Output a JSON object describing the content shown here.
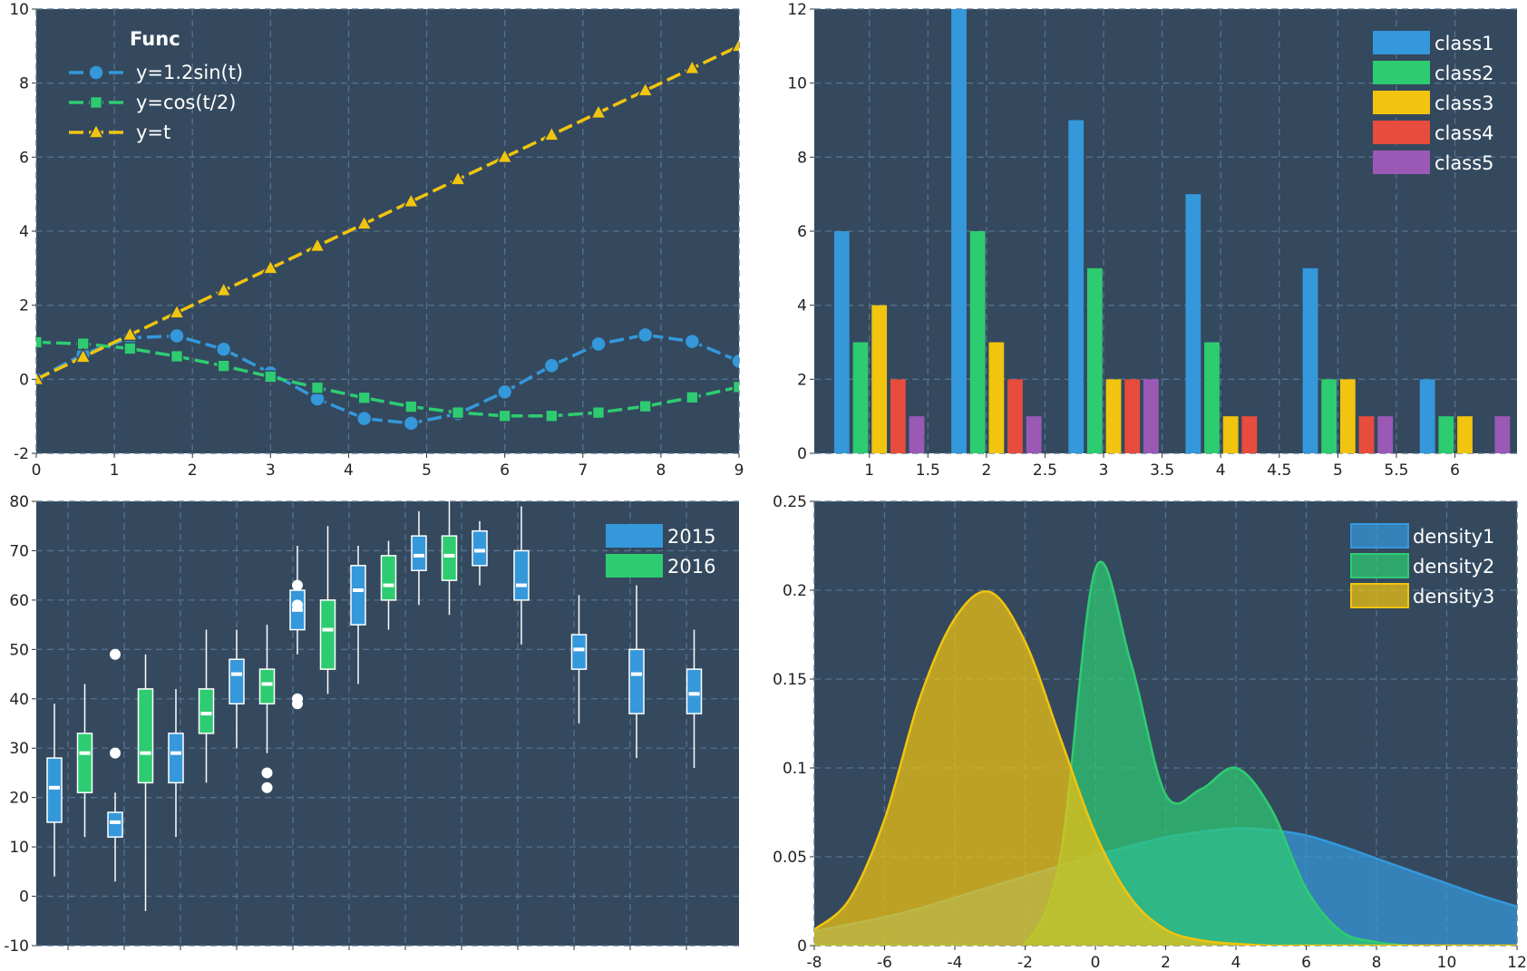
{
  "colors": {
    "background": "#34495e",
    "grid": "#56708c",
    "blue": "#3498db",
    "green": "#2ecc71",
    "yellow": "#f1c40f",
    "red": "#e74c3c",
    "purple": "#9b59b6",
    "white": "#ffffff"
  },
  "chart_data": [
    {
      "type": "line",
      "legend_title": "Func",
      "xlim": [
        0,
        9
      ],
      "ylim": [
        -2,
        10
      ],
      "x_ticks": [
        0,
        1,
        2,
        3,
        4,
        5,
        6,
        7,
        8,
        9
      ],
      "y_ticks": [
        -2,
        0,
        2,
        4,
        6,
        8,
        10
      ],
      "grid": true,
      "legend_position": "top-left",
      "x": [
        0,
        0.6,
        1.2,
        1.8,
        2.4,
        3.0,
        3.6,
        4.2,
        4.8,
        5.4,
        6.0,
        6.6,
        7.2,
        7.8,
        8.4,
        9.0
      ],
      "series": [
        {
          "name": "y=1.2sin(t)",
          "marker": "circle",
          "color": "#3498db",
          "values": [
            0.0,
            0.68,
            1.12,
            1.17,
            0.81,
            0.17,
            -0.53,
            -1.06,
            -1.19,
            -0.93,
            -0.34,
            0.37,
            0.95,
            1.2,
            1.02,
            0.49
          ]
        },
        {
          "name": "y=cos(t/2)",
          "marker": "square",
          "color": "#2ecc71",
          "values": [
            1.0,
            0.96,
            0.83,
            0.62,
            0.36,
            0.07,
            -0.23,
            -0.5,
            -0.74,
            -0.9,
            -0.99,
            -0.99,
            -0.9,
            -0.73,
            -0.49,
            -0.21
          ]
        },
        {
          "name": "y=t",
          "marker": "triangle",
          "color": "#f1c40f",
          "values": [
            0.0,
            0.6,
            1.2,
            1.8,
            2.4,
            3.0,
            3.6,
            4.2,
            4.8,
            5.4,
            6.0,
            6.6,
            7.2,
            7.8,
            8.4,
            9.0
          ]
        }
      ]
    },
    {
      "type": "bar",
      "xlim": [
        0.53,
        6.53
      ],
      "ylim": [
        0,
        12
      ],
      "x_ticks": [
        "1",
        "1.5",
        "2",
        "2.5",
        "3",
        "3.5",
        "4",
        "4.5",
        "5",
        "5.5",
        "6"
      ],
      "y_ticks": [
        0,
        2,
        4,
        6,
        8,
        10,
        12
      ],
      "grid": true,
      "legend_position": "top-right",
      "categories": [
        1,
        2,
        3,
        4,
        5,
        6
      ],
      "series": [
        {
          "name": "class1",
          "color": "#3498db",
          "values": [
            6,
            12,
            9,
            7,
            5,
            2
          ]
        },
        {
          "name": "class2",
          "color": "#2ecc71",
          "values": [
            3,
            6,
            5,
            3,
            2,
            1
          ]
        },
        {
          "name": "class3",
          "color": "#f1c40f",
          "values": [
            4,
            3,
            2,
            1,
            2,
            1
          ]
        },
        {
          "name": "class4",
          "color": "#e74c3c",
          "values": [
            2,
            2,
            2,
            1,
            1,
            0
          ]
        },
        {
          "name": "class5",
          "color": "#9b59b6",
          "values": [
            1,
            1,
            2,
            0,
            1,
            1
          ]
        }
      ]
    },
    {
      "type": "box",
      "ylim": [
        -10,
        80
      ],
      "y_ticks": [
        -10,
        0,
        10,
        20,
        30,
        40,
        50,
        60,
        70,
        80
      ],
      "grid": true,
      "legend_position": "top-right",
      "series": [
        {
          "name": "2015",
          "color": "#3498db"
        },
        {
          "name": "2016",
          "color": "#2ecc71"
        }
      ],
      "boxes": [
        {
          "series": "2015",
          "min": 4,
          "q1": 15,
          "median": 22,
          "q3": 28,
          "max": 39,
          "outliers": []
        },
        {
          "series": "2016",
          "min": 12,
          "q1": 21,
          "median": 29,
          "q3": 33,
          "max": 43,
          "outliers": []
        },
        {
          "series": "2015",
          "min": 3,
          "q1": 12,
          "median": 15,
          "q3": 17,
          "max": 21,
          "outliers": [
            49,
            29
          ]
        },
        {
          "series": "2016",
          "min": -3,
          "q1": 23,
          "median": 29,
          "q3": 42,
          "max": 49,
          "outliers": []
        },
        {
          "series": "2015",
          "min": 12,
          "q1": 23,
          "median": 29,
          "q3": 33,
          "max": 42,
          "outliers": []
        },
        {
          "series": "2016",
          "min": 23,
          "q1": 33,
          "median": 37,
          "q3": 42,
          "max": 54,
          "outliers": []
        },
        {
          "series": "2015",
          "min": 30,
          "q1": 39,
          "median": 45,
          "q3": 48,
          "max": 54,
          "outliers": []
        },
        {
          "series": "2016",
          "min": 29,
          "q1": 39,
          "median": 43,
          "q3": 46,
          "max": 55,
          "outliers": [
            25,
            22
          ]
        },
        {
          "series": "2015",
          "min": 49,
          "q1": 54,
          "median": 58,
          "q3": 62,
          "max": 71,
          "outliers": [
            63,
            59,
            40,
            39
          ]
        },
        {
          "series": "2016",
          "min": 41,
          "q1": 46,
          "median": 54,
          "q3": 60,
          "max": 75,
          "outliers": []
        },
        {
          "series": "2015",
          "min": 43,
          "q1": 55,
          "median": 62,
          "q3": 67,
          "max": 71,
          "outliers": []
        },
        {
          "series": "2016",
          "min": 54,
          "q1": 60,
          "median": 63,
          "q3": 69,
          "max": 72,
          "outliers": []
        },
        {
          "series": "2015",
          "min": 59,
          "q1": 66,
          "median": 69,
          "q3": 73,
          "max": 78,
          "outliers": []
        },
        {
          "series": "2016",
          "min": 57,
          "q1": 64,
          "median": 69,
          "q3": 73,
          "max": 80,
          "outliers": []
        },
        {
          "series": "2015",
          "min": 63,
          "q1": 67,
          "median": 70,
          "q3": 74,
          "max": 76,
          "outliers": []
        },
        {
          "series": "2015",
          "min": 51,
          "q1": 60,
          "median": 63,
          "q3": 70,
          "max": 79,
          "outliers": []
        },
        {
          "series": "2015",
          "min": 35,
          "q1": 46,
          "median": 50,
          "q3": 53,
          "max": 61,
          "outliers": []
        },
        {
          "series": "2015",
          "min": 28,
          "q1": 37,
          "median": 45,
          "q3": 50,
          "max": 63,
          "outliers": []
        },
        {
          "series": "2015",
          "min": 26,
          "q1": 37,
          "median": 41,
          "q3": 46,
          "max": 54,
          "outliers": []
        }
      ]
    },
    {
      "type": "area",
      "xlim": [
        -8,
        12
      ],
      "ylim": [
        0,
        0.25
      ],
      "x_ticks": [
        "-8",
        "-6",
        "-4",
        "-2",
        "0",
        "2",
        "4",
        "6",
        "8",
        "10",
        "12"
      ],
      "y_ticks": [
        "0",
        "0.05",
        "0.1",
        "0.15",
        "0.2",
        "0.25"
      ],
      "grid": true,
      "legend_position": "top-right",
      "x": [
        -8,
        -7,
        -6,
        -5,
        -4,
        -3,
        -2,
        -1,
        0,
        1,
        2,
        3,
        4,
        5,
        6,
        7,
        8,
        9,
        10,
        11,
        12
      ],
      "series": [
        {
          "name": "density1",
          "color": "#3498db",
          "values": [
            0.008,
            0.012,
            0.016,
            0.021,
            0.027,
            0.033,
            0.039,
            0.045,
            0.051,
            0.056,
            0.061,
            0.064,
            0.066,
            0.065,
            0.062,
            0.056,
            0.049,
            0.042,
            0.035,
            0.028,
            0.022
          ]
        },
        {
          "name": "density2",
          "color": "#2ecc71",
          "values": [
            0.0,
            0.0,
            0.0,
            0.0,
            0.0,
            0.0,
            0.001,
            0.05,
            0.212,
            0.16,
            0.085,
            0.088,
            0.1,
            0.077,
            0.032,
            0.008,
            0.002,
            0.0,
            0.0,
            0.0,
            0.0
          ]
        },
        {
          "name": "density3",
          "color": "#f1c40f",
          "values": [
            0.009,
            0.026,
            0.071,
            0.139,
            0.184,
            0.199,
            0.171,
            0.117,
            0.063,
            0.027,
            0.009,
            0.003,
            0.001,
            0.0,
            0.0,
            0.0,
            0.0,
            0.0,
            0.0,
            0.0,
            0.0
          ]
        }
      ]
    }
  ]
}
